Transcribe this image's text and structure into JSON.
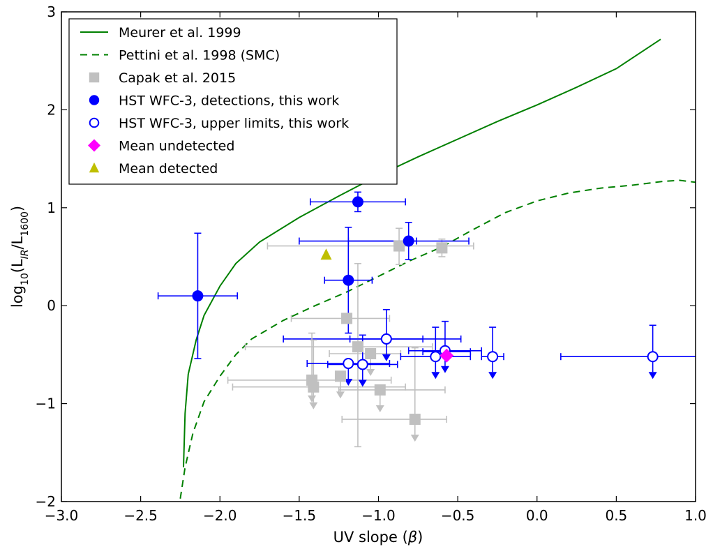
{
  "chart_data": {
    "type": "scatter",
    "xlabel": "UV slope (β)",
    "ylabel": "log10(L_IR/L_1600)",
    "ylabel_parts": {
      "pre": "log",
      "pre_sub": "10",
      "mid1": "(L",
      "sub1": "IR",
      "mid2": "/L",
      "sub2": "1600",
      "post": ")"
    },
    "xlabel_parts": {
      "text": "UV slope (",
      "beta": "β",
      "close": ")"
    },
    "xlim": [
      -3.0,
      1.0
    ],
    "ylim": [
      -2,
      3
    ],
    "xticks": [
      "−3.0",
      "−2.5",
      "−2.0",
      "−1.5",
      "−1.0",
      "−0.5",
      "0.0",
      "0.5",
      "1.0"
    ],
    "xtick_values": [
      -3.0,
      -2.5,
      -2.0,
      -1.5,
      -1.0,
      -0.5,
      0.0,
      0.5,
      1.0
    ],
    "yticks": [
      "−2",
      "−1",
      "0",
      "1",
      "2",
      "3"
    ],
    "ytick_values": [
      -2,
      -1,
      0,
      1,
      2,
      3
    ],
    "grid": false,
    "legend_position": "top-left",
    "colors": {
      "meurer": "#008000",
      "pettini": "#008000",
      "capak": "#c0c0c0",
      "detections": "#0000ff",
      "upper": "#0000ff",
      "mean_undetected": "#ff00ff",
      "mean_detected": "#bfbf00"
    },
    "series": [
      {
        "name": "Meurer et al. 1999",
        "kind": "line",
        "style": "solid",
        "points": [
          [
            -2.23,
            -1.65
          ],
          [
            -2.22,
            -1.1
          ],
          [
            -2.2,
            -0.7
          ],
          [
            -2.15,
            -0.35
          ],
          [
            -2.1,
            -0.1
          ],
          [
            -2.0,
            0.2
          ],
          [
            -1.9,
            0.43
          ],
          [
            -1.75,
            0.65
          ],
          [
            -1.5,
            0.9
          ],
          [
            -1.25,
            1.12
          ],
          [
            -1.0,
            1.33
          ],
          [
            -0.75,
            1.52
          ],
          [
            -0.5,
            1.7
          ],
          [
            -0.25,
            1.88
          ],
          [
            0.0,
            2.05
          ],
          [
            0.25,
            2.23
          ],
          [
            0.5,
            2.42
          ],
          [
            0.78,
            2.72
          ]
        ]
      },
      {
        "name": "Pettini et al. 1998 (SMC)",
        "kind": "line",
        "style": "dashed",
        "points": [
          [
            -2.25,
            -1.97
          ],
          [
            -2.22,
            -1.65
          ],
          [
            -2.17,
            -1.3
          ],
          [
            -2.1,
            -0.98
          ],
          [
            -2.0,
            -0.72
          ],
          [
            -1.9,
            -0.5
          ],
          [
            -1.8,
            -0.34
          ],
          [
            -1.6,
            -0.15
          ],
          [
            -1.4,
            0.0
          ],
          [
            -1.2,
            0.14
          ],
          [
            -1.0,
            0.3
          ],
          [
            -0.8,
            0.46
          ],
          [
            -0.6,
            0.6
          ],
          [
            -0.4,
            0.78
          ],
          [
            -0.2,
            0.95
          ],
          [
            0.0,
            1.07
          ],
          [
            0.2,
            1.15
          ],
          [
            0.4,
            1.2
          ],
          [
            0.6,
            1.23
          ],
          [
            0.8,
            1.27
          ],
          [
            0.9,
            1.28
          ],
          [
            1.0,
            1.26
          ]
        ]
      },
      {
        "name": "Capak et al. 2015",
        "kind": "points",
        "marker": "square",
        "points": [
          {
            "x": -0.87,
            "y": 0.61,
            "xerr": [
              0.0,
              0.0
            ],
            "yerr": [
              0.18,
              0.19
            ],
            "limit": false
          },
          {
            "x": -0.6,
            "y": 0.59,
            "xerr": [
              0.0,
              0.0
            ],
            "yerr": [
              0.09,
              0.09
            ],
            "limit": false
          },
          {
            "x": -1.2,
            "y": -0.13,
            "xerr": [
              0.35,
              0.27
            ],
            "yerr": [
              0.0,
              0.0
            ],
            "limit": false
          },
          {
            "x": -1.13,
            "y": -0.42,
            "xerr": [
              0.71,
              0.47
            ],
            "yerr": [
              0.85,
              1.02
            ],
            "limit": false
          },
          {
            "x": -1.05,
            "y": -0.49,
            "xerr": [
              0.26,
              0.19
            ],
            "yerr": [
              0.0,
              0.0
            ],
            "limit": true
          },
          {
            "x": -1.42,
            "y": -0.76,
            "xerr": [
              0.53,
              0.5
            ],
            "yerr": [
              0.48,
              0.0
            ],
            "limit": true
          },
          {
            "x": -1.41,
            "y": -0.83,
            "xerr": [
              0.51,
              0.58
            ],
            "yerr": [
              0.48,
              0.0
            ],
            "limit": true
          },
          {
            "x": -1.24,
            "y": -0.72,
            "xerr": [
              0.0,
              0.0
            ],
            "yerr": [
              0.0,
              0.0
            ],
            "limit": true
          },
          {
            "x": -0.99,
            "y": -0.86,
            "xerr": [
              0.26,
              0.41
            ],
            "yerr": [
              0.0,
              0.0
            ],
            "limit": true
          },
          {
            "x": -0.77,
            "y": -1.16,
            "xerr": [
              0.46,
              0.2
            ],
            "yerr": [
              0.73,
              0.0
            ],
            "limit": true
          }
        ]
      },
      {
        "name": "HST WFC-3, detections, this work",
        "kind": "points",
        "marker": "circle",
        "points": [
          {
            "x": -2.14,
            "y": 0.1,
            "xerr": [
              0.25,
              0.25
            ],
            "yerr": [
              0.64,
              0.64
            ]
          },
          {
            "x": -1.13,
            "y": 1.06,
            "xerr": [
              0.3,
              0.3
            ],
            "yerr": [
              0.1,
              0.1
            ]
          },
          {
            "x": -0.81,
            "y": 0.66,
            "xerr": [
              0.38,
              0.38
            ],
            "yerr": [
              0.19,
              0.19
            ]
          },
          {
            "x": -1.19,
            "y": 0.26,
            "xerr": [
              0.15,
              0.15
            ],
            "yerr": [
              0.54,
              0.54
            ]
          }
        ]
      },
      {
        "name": "HST WFC-3, upper limits, this work",
        "kind": "points",
        "marker": "open-circle",
        "points": [
          {
            "x": -0.95,
            "y": -0.34,
            "xerr": [
              0.23,
              0.23
            ],
            "yerr": [
              0.3,
              0.0
            ],
            "limit": true
          },
          {
            "x": -1.19,
            "y": -0.59,
            "xerr": [
              0.26,
              0.26
            ],
            "yerr": [
              0.0,
              0.0
            ],
            "limit": true
          },
          {
            "x": -1.1,
            "y": -0.6,
            "xerr": [
              0.22,
              0.22
            ],
            "yerr": [
              0.3,
              0.0
            ],
            "limit": true
          },
          {
            "x": -0.64,
            "y": -0.52,
            "xerr": [
              0.22,
              0.22
            ],
            "yerr": [
              0.3,
              0.0
            ],
            "limit": true
          },
          {
            "x": -0.58,
            "y": -0.46,
            "xerr": [
              0.23,
              0.23
            ],
            "yerr": [
              0.3,
              0.0
            ],
            "limit": true
          },
          {
            "x": -0.28,
            "y": -0.52,
            "xerr": [
              0.07,
              0.07
            ],
            "yerr": [
              0.3,
              0.0
            ],
            "limit": true
          },
          {
            "x": 0.73,
            "y": -0.52,
            "xerr": [
              0.58,
              0.58
            ],
            "yerr": [
              0.32,
              0.0
            ],
            "limit": true
          }
        ]
      },
      {
        "name": "Mean undetected",
        "kind": "points",
        "marker": "diamond",
        "points": [
          {
            "x": -0.57,
            "y": -0.51
          }
        ]
      },
      {
        "name": "Mean detected",
        "kind": "points",
        "marker": "triangle",
        "points": [
          {
            "x": -1.33,
            "y": 0.52
          }
        ]
      }
    ],
    "extra_errorbars": [
      {
        "x": -1.04,
        "xerr": [
          0.56,
          0.56
        ],
        "y": -0.34,
        "color": "#0000ff"
      },
      {
        "x": -0.98,
        "xerr": [
          0.72,
          0.58
        ],
        "y": 0.61,
        "color": "#c0c0c0"
      },
      {
        "x": -0.72,
        "xerr": [
          0.0,
          0.3
        ],
        "y": -0.47,
        "color": "#0000ff"
      },
      {
        "x": -1.13,
        "xerr": [
          0.37,
          0.37
        ],
        "y": 0.66,
        "color": "#0000ff"
      }
    ]
  }
}
